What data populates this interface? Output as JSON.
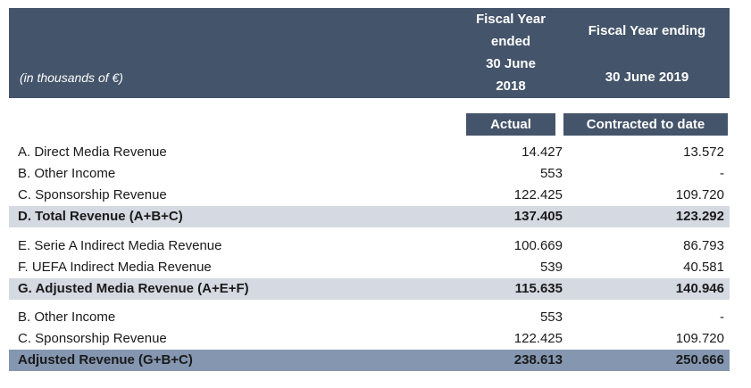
{
  "header": {
    "unit_note": "(in thousands of €)",
    "col1_lines": [
      "Fiscal Year",
      "ended",
      "30 June",
      "2018"
    ],
    "col2_top": "Fiscal Year ending",
    "col2_bottom": "30 June 2019"
  },
  "subheader": {
    "col1": "Actual",
    "col2": "Contracted to date"
  },
  "rows": [
    {
      "label": "A. Direct Media Revenue",
      "v1": "14.427",
      "v2": "13.572"
    },
    {
      "label": "B. Other Income",
      "v1": "553",
      "v2": "-"
    },
    {
      "label": "C. Sponsorship Revenue",
      "v1": "122.425",
      "v2": "109.720"
    },
    {
      "label": "D. Total Revenue (A+B+C)",
      "v1": "137.405",
      "v2": "123.292"
    },
    {
      "label": "E. Serie A Indirect Media Revenue",
      "v1": "100.669",
      "v2": "86.793"
    },
    {
      "label": "F. UEFA Indirect Media Revenue",
      "v1": "539",
      "v2": "40.581"
    },
    {
      "label": "G. Adjusted Media Revenue  (A+E+F)",
      "v1": "115.635",
      "v2": "140.946"
    },
    {
      "label": "B. Other Income",
      "v1": "553",
      "v2": "-"
    },
    {
      "label": "C. Sponsorship Revenue",
      "v1": "122.425",
      "v2": "109.720"
    },
    {
      "label": "Adjusted Revenue (G+B+C)",
      "v1": "238.613",
      "v2": "250.666"
    }
  ],
  "colors": {
    "header_bg": "#44546a",
    "total_row_bg": "#d4d9e2",
    "final_row_bg": "#8496b0"
  }
}
